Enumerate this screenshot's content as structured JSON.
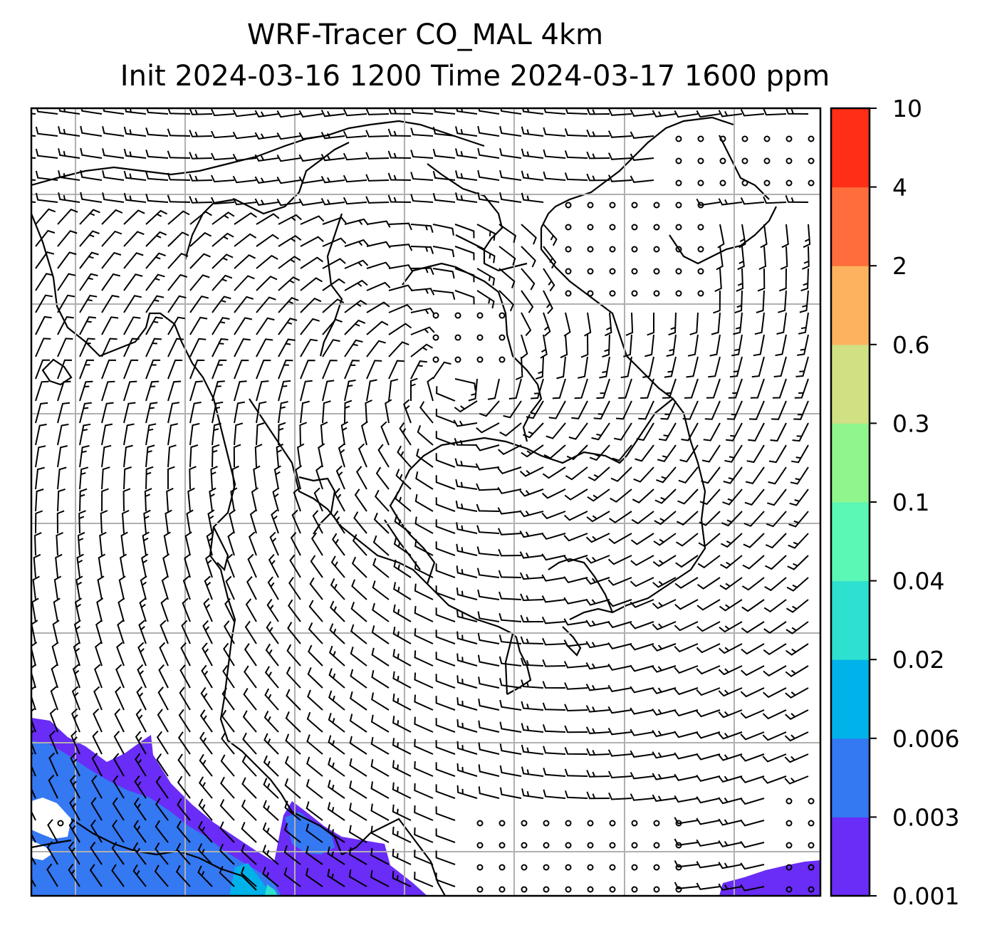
{
  "title": {
    "line1": "WRF-Tracer CO_MAL 4km",
    "line2": "Init 2024-03-16 1200 Time 2024-03-17 1600 ppm"
  },
  "colorbar": {
    "levels": [
      "0.001",
      "0.003",
      "0.006",
      "0.02",
      "0.04",
      "0.1",
      "0.3",
      "0.6",
      "2",
      "4",
      "10"
    ],
    "colors": [
      "#6a2cf7",
      "#3478f2",
      "#00b2ea",
      "#2ee0cf",
      "#5af7b5",
      "#90f58d",
      "#d0e083",
      "#fdb25f",
      "#fe6d3b",
      "#ff2e16"
    ]
  },
  "map": {
    "field": "CO_MAL tracer concentration",
    "overlays": [
      "wind barbs",
      "coastlines",
      "country borders",
      "lat-lon gridlines"
    ],
    "gridline_color": "#b0b0b0"
  }
}
